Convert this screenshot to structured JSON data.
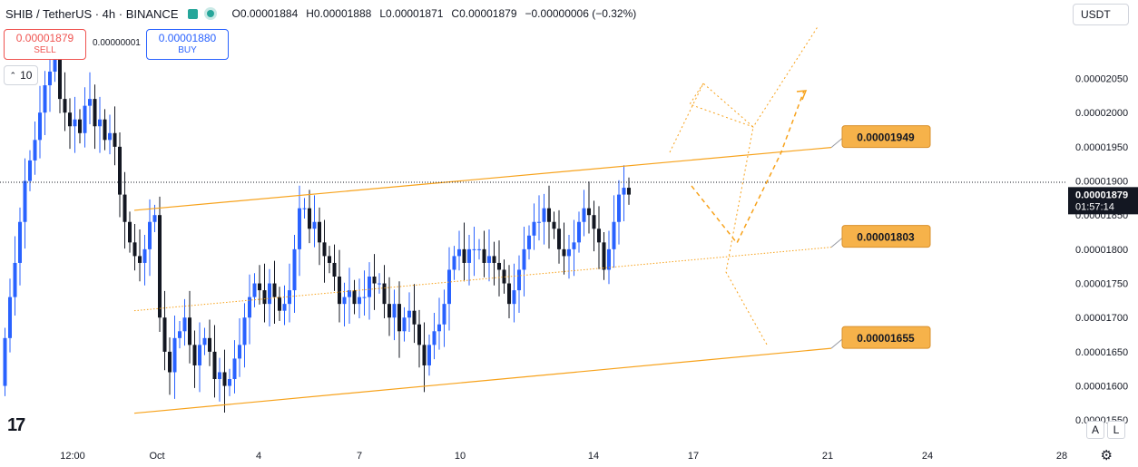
{
  "header": {
    "symbol": "SHIB / TetherUS · 4h · BINANCE",
    "ohlc": [
      {
        "k": "O",
        "v": "0.00001884"
      },
      {
        "k": "H",
        "v": "0.00001888"
      },
      {
        "k": "L",
        "v": "0.00001871"
      },
      {
        "k": "C",
        "v": "0.00001879"
      }
    ],
    "change": "−0.00000006 (−0.32%)"
  },
  "trade": {
    "sell_price": "0.00001879",
    "sell_label": "SELL",
    "spread": "0.00000001",
    "buy_price": "0.00001880",
    "buy_label": "BUY"
  },
  "volume_box": "10",
  "currency": "USDT",
  "logo": "17",
  "scale_buttons": {
    "a": "A",
    "l": "L"
  },
  "colors": {
    "up": "#2962ff",
    "down": "#131722",
    "channel": "#f7a21b",
    "label_bg": "#f6b24a"
  },
  "chart_data": {
    "type": "candlestick",
    "x_tick_labels": [
      "12:00",
      "Oct",
      "4",
      "7",
      "10",
      "14",
      "17",
      "21",
      "24",
      "28"
    ],
    "y_ticks": [
      "0.00002050",
      "0.00002000",
      "0.00001950",
      "0.00001900",
      "0.00001850",
      "0.00001800",
      "0.00001750",
      "0.00001700",
      "0.00001650",
      "0.00001600",
      "0.00001550"
    ],
    "ylim": [
      1.545e-05,
      2.125e-05
    ],
    "current_price": {
      "value": "0.00001879",
      "countdown": "01:57:14"
    },
    "channel_labels": [
      "0.00001949",
      "0.00001803",
      "0.00001655"
    ],
    "channel": {
      "upper": [
        [
          0.0,
          1.857e-05
        ],
        [
          1.0,
          1.949e-05
        ]
      ],
      "middle": [
        [
          0.0,
          1.71e-05
        ],
        [
          1.0,
          1.803e-05
        ]
      ],
      "lower": [
        [
          0.0,
          1.56e-05
        ],
        [
          1.0,
          1.655e-05
        ]
      ]
    },
    "candles_close": [
      1.67,
      1.73,
      1.78,
      1.84,
      1.9,
      1.93,
      1.96,
      2.0,
      2.04,
      2.06,
      2.08,
      2.02,
      2.0,
      1.98,
      1.99,
      1.97,
      2.01,
      2.02,
      1.98,
      1.99,
      1.96,
      1.97,
      1.95,
      1.88,
      1.84,
      1.81,
      1.79,
      1.78,
      1.8,
      1.84,
      1.85,
      1.7,
      1.65,
      1.62,
      1.67,
      1.68,
      1.7,
      1.66,
      1.63,
      1.66,
      1.67,
      1.65,
      1.61,
      1.62,
      1.6,
      1.61,
      1.64,
      1.66,
      1.7,
      1.73,
      1.75,
      1.74,
      1.72,
      1.75,
      1.73,
      1.71,
      1.72,
      1.74,
      1.8,
      1.86,
      1.86,
      1.83,
      1.84,
      1.81,
      1.79,
      1.78,
      1.76,
      1.72,
      1.73,
      1.74,
      1.72,
      1.73,
      1.73,
      1.76,
      1.75,
      1.75,
      1.72,
      1.7,
      1.72,
      1.68,
      1.7,
      1.71,
      1.69,
      1.66,
      1.63,
      1.66,
      1.68,
      1.69,
      1.72,
      1.77,
      1.79,
      1.8,
      1.78,
      1.8,
      1.8,
      1.8,
      1.78,
      1.79,
      1.78,
      1.77,
      1.75,
      1.72,
      1.74,
      1.77,
      1.8,
      1.82,
      1.84,
      1.84,
      1.86,
      1.84,
      1.83,
      1.8,
      1.79,
      1.8,
      1.81,
      1.84,
      1.86,
      1.85,
      1.83,
      1.81,
      1.77,
      1.8,
      1.84,
      1.88,
      1.89,
      1.88
    ]
  }
}
